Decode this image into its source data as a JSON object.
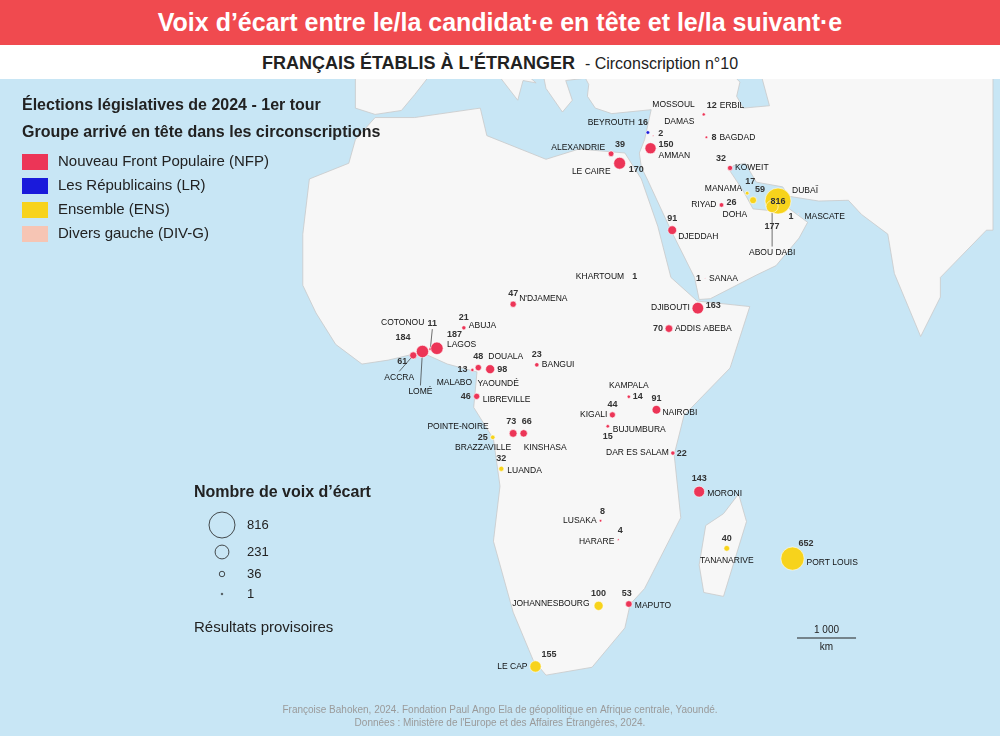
{
  "chart_data": {
    "type": "bubble",
    "title": "Voix d’écart entre le/la candidat·e en tête et le/la suivant·e",
    "subtitle": [
      "FRANÇAIS ÉTABLIS À L'ÉTRANGER",
      "- Circonscription n°10"
    ],
    "legend_title": [
      "Élections législatives de 2024 - 1er tour",
      "Groupe arrivé en tête dans les circonscriptions"
    ],
    "legend": "top-left",
    "groups": [
      {
        "code": "NFP",
        "name": "Nouveau Front Populaire (NFP)",
        "color": "#ec3557"
      },
      {
        "code": "LR",
        "name": "Les Républicains (LR)",
        "color": "#1a1adb"
      },
      {
        "code": "ENS",
        "name": "Ensemble (ENS)",
        "color": "#f7d31c"
      },
      {
        "code": "DIV-G",
        "name": "Divers gauche (DIV-G)",
        "color": "#f6c5b4"
      }
    ],
    "xlim": [
      -61,
      87
    ],
    "ylim": [
      -41,
      49
    ],
    "tick_labels": false,
    "grid": false,
    "data_labels": true,
    "points": [
      {
        "label": "MOSSOUL",
        "x": 43.1,
        "y": 36.3,
        "value": null,
        "group": null
      },
      {
        "label": "ERBIL",
        "x": 44.0,
        "y": 36.2,
        "value": 12,
        "group": "NFP"
      },
      {
        "label": "BEYROUTH",
        "x": 35.5,
        "y": 33.9,
        "value": 16,
        "group": "LR"
      },
      {
        "label": "DAMAS",
        "x": 36.3,
        "y": 33.5,
        "value": 2,
        "group": "NFP"
      },
      {
        "label": "BAGDAD",
        "x": 44.4,
        "y": 33.3,
        "value": 8,
        "group": "NFP"
      },
      {
        "label": "ALEXANDRIE",
        "x": 29.9,
        "y": 31.2,
        "value": 39,
        "group": "NFP"
      },
      {
        "label": "LE CAIRE",
        "x": 31.2,
        "y": 30.0,
        "value": 170,
        "group": "NFP"
      },
      {
        "label": "AMMAN",
        "x": 35.9,
        "y": 31.9,
        "value": 150,
        "group": "NFP"
      },
      {
        "label": "KOWEIT",
        "x": 48.0,
        "y": 29.4,
        "value": 32,
        "group": "NFP"
      },
      {
        "label": "MANAMA",
        "x": 50.6,
        "y": 26.2,
        "value": 17,
        "group": "ENS"
      },
      {
        "label": "RIYAD",
        "x": 46.7,
        "y": 24.7,
        "value": 26,
        "group": "NFP"
      },
      {
        "label": "DOHA",
        "x": 51.5,
        "y": 25.3,
        "value": 59,
        "group": "ENS"
      },
      {
        "label": "DUBAÏ",
        "x": 55.3,
        "y": 25.2,
        "value": 816,
        "group": "ENS"
      },
      {
        "label": "ABOU DABI",
        "x": 54.4,
        "y": 24.5,
        "value": 177,
        "group": "ENS"
      },
      {
        "label": "MASCATE",
        "x": 58.4,
        "y": 23.6,
        "value": 1,
        "group": "NFP"
      },
      {
        "label": "DJEDDAH",
        "x": 39.2,
        "y": 21.5,
        "value": 91,
        "group": "NFP"
      },
      {
        "label": "KHARTOUM",
        "x": 32.5,
        "y": 15.6,
        "value": 1,
        "group": "DIV-G"
      },
      {
        "label": "SANAA",
        "x": 44.2,
        "y": 15.4,
        "value": 1,
        "group": "NFP"
      },
      {
        "label": "N'DJAMENA",
        "x": 15.0,
        "y": 12.1,
        "value": 47,
        "group": "NFP"
      },
      {
        "label": "DJIBOUTI",
        "x": 43.1,
        "y": 11.6,
        "value": 163,
        "group": "NFP"
      },
      {
        "label": "ADDIS ABEBA",
        "x": 38.7,
        "y": 9.0,
        "value": 70,
        "group": "NFP"
      },
      {
        "label": "ABUJA",
        "x": 7.5,
        "y": 9.1,
        "value": 21,
        "group": "NFP"
      },
      {
        "label": "COTONOU",
        "x": 2.4,
        "y": 6.4,
        "value": 11,
        "group": "NFP"
      },
      {
        "label": "LAGOS",
        "x": 3.4,
        "y": 6.5,
        "value": 187,
        "group": "NFP"
      },
      {
        "label": "LOMÉ",
        "x": 1.2,
        "y": 6.1,
        "value": 184,
        "group": "NFP"
      },
      {
        "label": "ACCRA",
        "x": -0.2,
        "y": 5.6,
        "value": 61,
        "group": "NFP"
      },
      {
        "label": "POINTE-NOIRE",
        "x": 11.9,
        "y": -4.8,
        "value": 25,
        "group": "ENS"
      },
      {
        "label": "DOUALA",
        "x": 9.7,
        "y": 4.05,
        "value": 48,
        "group": "NFP"
      },
      {
        "label": "MALABO",
        "x": 8.8,
        "y": 3.75,
        "value": 13,
        "group": "NFP"
      },
      {
        "label": "YAOUNDÉ",
        "x": 11.5,
        "y": 3.85,
        "value": 98,
        "group": "NFP"
      },
      {
        "label": "BANGUI",
        "x": 18.6,
        "y": 4.4,
        "value": 23,
        "group": "NFP"
      },
      {
        "label": "LIBREVILLE",
        "x": 9.45,
        "y": 0.4,
        "value": 46,
        "group": "NFP"
      },
      {
        "label": "BRAZZAVILLE",
        "x": 15.0,
        "y": -4.3,
        "value": 73,
        "group": "NFP"
      },
      {
        "label": "KINSHASA",
        "x": 16.6,
        "y": -4.3,
        "value": 66,
        "group": "NFP"
      },
      {
        "label": "LUANDA",
        "x": 13.2,
        "y": -8.8,
        "value": 32,
        "group": "ENS"
      },
      {
        "label": "KAMPALA",
        "x": 32.6,
        "y": 0.35,
        "value": 14,
        "group": "NFP"
      },
      {
        "label": "KIGALI",
        "x": 30.1,
        "y": -1.95,
        "value": 44,
        "group": "NFP"
      },
      {
        "label": "BUJUMBURA",
        "x": 29.4,
        "y": -3.4,
        "value": 15,
        "group": "NFP"
      },
      {
        "label": "NAIROBI",
        "x": 36.8,
        "y": -1.3,
        "value": 91,
        "group": "NFP"
      },
      {
        "label": "DAR ES SALAM",
        "x": 39.3,
        "y": -6.8,
        "value": 22,
        "group": "NFP"
      },
      {
        "label": "MORONI",
        "x": 43.3,
        "y": -11.7,
        "value": 143,
        "group": "NFP"
      },
      {
        "label": "LUSAKA",
        "x": 28.3,
        "y": -15.4,
        "value": 8,
        "group": "NFP"
      },
      {
        "label": "HARARE",
        "x": 31.0,
        "y": -17.8,
        "value": 4,
        "group": "NFP"
      },
      {
        "label": "TANANARIVE",
        "x": 47.5,
        "y": -18.9,
        "value": 40,
        "group": "ENS"
      },
      {
        "label": "PORT LOUIS",
        "x": 57.5,
        "y": -20.2,
        "value": 652,
        "group": "ENS"
      },
      {
        "label": "JOHANNESBOURG",
        "x": 28.0,
        "y": -26.2,
        "value": 100,
        "group": "ENS"
      },
      {
        "label": "MAPUTO",
        "x": 32.6,
        "y": -25.97,
        "value": 53,
        "group": "NFP"
      },
      {
        "label": "LE CAP",
        "x": 18.4,
        "y": -33.9,
        "value": 155,
        "group": "ENS"
      }
    ],
    "size_legend": {
      "title": "Nombre de voix d’écart",
      "values": [
        816,
        231,
        36,
        1
      ]
    },
    "note": "Résultats provisoires",
    "scale_bar": {
      "value": 1000,
      "label": "1 000",
      "unit": "km"
    },
    "source": [
      "Françoise Bahoken, 2024. Fondation Paul Ango Ela de géopolitique en Afrique centrale, Yaoundé.",
      "Données : Ministère de l'Europe et des Affaires Étrangères, 2024."
    ]
  }
}
